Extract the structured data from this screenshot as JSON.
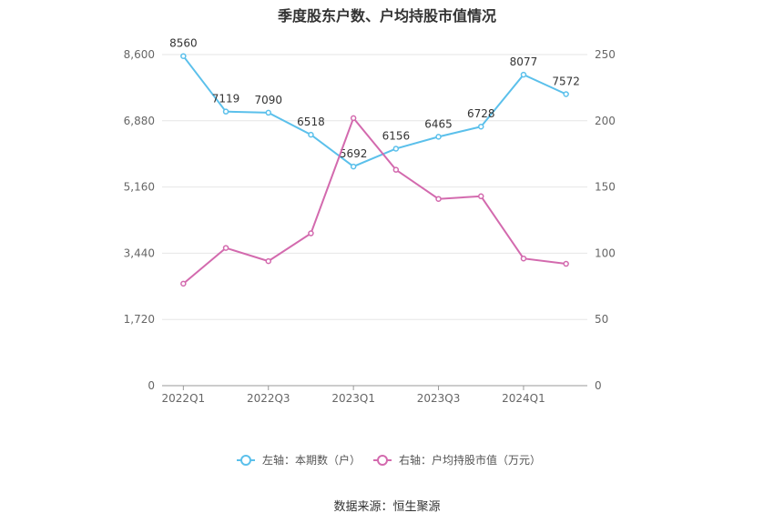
{
  "title": "季度股东户数、户均持股市值情况",
  "source": "数据来源：恒生聚源",
  "chart_data": {
    "type": "line",
    "x": [
      "2022Q1",
      "2022Q2",
      "2022Q3",
      "2022Q4",
      "2023Q1",
      "2023Q2",
      "2023Q3",
      "2023Q4",
      "2024Q1",
      "2024Q2"
    ],
    "x_tick_labels": [
      "2022Q1",
      "2022Q3",
      "2023Q1",
      "2023Q3",
      "2024Q1"
    ],
    "left_axis": {
      "ticks": [
        0,
        1720,
        3440,
        5160,
        6880,
        8600
      ],
      "tick_labels": [
        "0",
        "1,720",
        "3,440",
        "5,160",
        "6,880",
        "8,600"
      ],
      "ylim": [
        0,
        8600
      ]
    },
    "right_axis": {
      "ticks": [
        0,
        50,
        100,
        150,
        200,
        250
      ],
      "tick_labels": [
        "0",
        "50",
        "100",
        "150",
        "200",
        "250"
      ],
      "ylim": [
        0,
        250
      ]
    },
    "series": [
      {
        "name": "左轴：本期数（户）",
        "axis": "left",
        "color": "#5bc0eb",
        "values": [
          8560,
          7119,
          7090,
          6518,
          5692,
          6156,
          6465,
          6728,
          8077,
          7572
        ],
        "labels": [
          "8560",
          "7119",
          "7090",
          "6518",
          "5692",
          "6156",
          "6465",
          "6728",
          "8077",
          "7572"
        ]
      },
      {
        "name": "右轴：户均持股市值（万元）",
        "axis": "right",
        "color": "#d36aae",
        "values": [
          77,
          104,
          94,
          115,
          202,
          163,
          141,
          143,
          96,
          92
        ]
      }
    ],
    "grid": true,
    "legend_position": "bottom"
  }
}
